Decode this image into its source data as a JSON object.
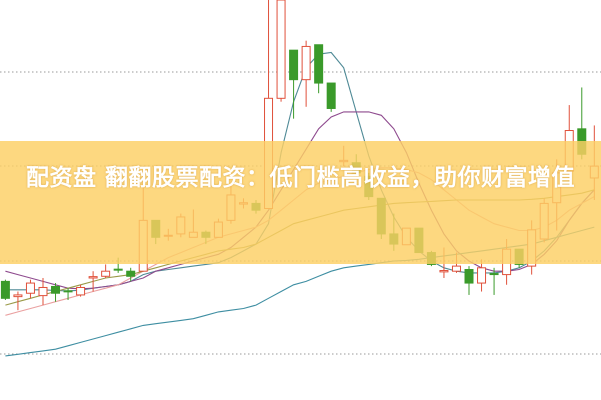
{
  "headline": "配资盘 翻翻股票配资：低门槛高收益，助你财富增值",
  "chart_data": {
    "type": "candlestick",
    "title": "",
    "xlabel": "",
    "ylabel": "",
    "grid": true,
    "legend": "none",
    "ylim": [
      0,
      118
    ],
    "colors": {
      "up": "#e0503a",
      "down": "#3a9a2a",
      "banner": "#fdd064",
      "grid": "#999999"
    },
    "candles": [
      {
        "o": 35.0,
        "h": 35.5,
        "l": 29.5,
        "c": 30.0
      },
      {
        "o": 30.5,
        "h": 32.0,
        "l": 26.5,
        "c": 31.0
      },
      {
        "o": 31.5,
        "h": 35.5,
        "l": 30.0,
        "c": 34.5
      },
      {
        "o": 30.8,
        "h": 36.0,
        "l": 28.0,
        "c": 33.2
      },
      {
        "o": 33.5,
        "h": 34.5,
        "l": 29.0,
        "c": 31.5
      },
      {
        "o": 32.2,
        "h": 33.0,
        "l": 29.5,
        "c": 32.0
      },
      {
        "o": 31.0,
        "h": 34.0,
        "l": 30.5,
        "c": 33.2
      },
      {
        "o": 36.0,
        "h": 38.0,
        "l": 32.0,
        "c": 36.4
      },
      {
        "o": 36.5,
        "h": 40.0,
        "l": 36.0,
        "c": 38.0
      },
      {
        "o": 38.6,
        "h": 42.0,
        "l": 37.5,
        "c": 38.4
      },
      {
        "o": 38.0,
        "h": 39.0,
        "l": 35.0,
        "c": 36.5
      },
      {
        "o": 38.0,
        "h": 69.0,
        "l": 38.0,
        "c": 53.0
      },
      {
        "o": 53.0,
        "h": 53.0,
        "l": 46.0,
        "c": 48.0
      },
      {
        "o": 48.4,
        "h": 50.5,
        "l": 47.0,
        "c": 48.6
      },
      {
        "o": 49.0,
        "h": 55.0,
        "l": 48.0,
        "c": 54.0
      },
      {
        "o": 48.0,
        "h": 56.2,
        "l": 48.0,
        "c": 49.5
      },
      {
        "o": 49.5,
        "h": 50.0,
        "l": 46.0,
        "c": 48.0
      },
      {
        "o": 48.0,
        "h": 53.5,
        "l": 48.0,
        "c": 52.5
      },
      {
        "o": 53.0,
        "h": 64.0,
        "l": 52.0,
        "c": 60.5
      },
      {
        "o": 57.8,
        "h": 59.5,
        "l": 56.5,
        "c": 58.2
      },
      {
        "o": 58.0,
        "h": 59.0,
        "l": 55.0,
        "c": 56.0
      },
      {
        "o": 56.5,
        "h": 118.0,
        "l": 56.5,
        "c": 89.0
      },
      {
        "o": 89.0,
        "h": 118.0,
        "l": 88.0,
        "c": 118.0
      },
      {
        "o": 103.2,
        "h": 103.2,
        "l": 83.0,
        "c": 94.5
      },
      {
        "o": 94.5,
        "h": 106.0,
        "l": 86.5,
        "c": 104.3
      },
      {
        "o": 104.8,
        "h": 104.8,
        "l": 90.5,
        "c": 93.5
      },
      {
        "o": 93.5,
        "h": 93.5,
        "l": 85.0,
        "c": 86.0
      },
      {
        "o": 70.3,
        "h": 75.0,
        "l": 69.0,
        "c": 70.7
      },
      {
        "o": 70.0,
        "h": 72.5,
        "l": 66.0,
        "c": 67.0
      },
      {
        "o": 66.0,
        "h": 67.0,
        "l": 59.0,
        "c": 60.0
      },
      {
        "o": 59.5,
        "h": 59.5,
        "l": 47.5,
        "c": 49.0
      },
      {
        "o": 49.0,
        "h": 55.0,
        "l": 44.0,
        "c": 46.0
      },
      {
        "o": 45.8,
        "h": 50.7,
        "l": 45.8,
        "c": 50.7
      },
      {
        "o": 50.7,
        "h": 50.7,
        "l": 43.5,
        "c": 43.5
      },
      {
        "o": 43.5,
        "h": 44.0,
        "l": 39.5,
        "c": 40.0
      },
      {
        "o": 37.8,
        "h": 45.0,
        "l": 36.0,
        "c": 38.2
      },
      {
        "o": 38.0,
        "h": 43.5,
        "l": 37.5,
        "c": 39.5
      },
      {
        "o": 38.5,
        "h": 39.5,
        "l": 31.0,
        "c": 34.5
      },
      {
        "o": 34.5,
        "h": 41.5,
        "l": 32.0,
        "c": 39.0
      },
      {
        "o": 37.3,
        "h": 39.0,
        "l": 31.0,
        "c": 37.1
      },
      {
        "o": 37.0,
        "h": 47.5,
        "l": 34.0,
        "c": 44.5
      },
      {
        "o": 44.5,
        "h": 44.5,
        "l": 39.0,
        "c": 40.0
      },
      {
        "o": 39.5,
        "h": 53.0,
        "l": 37.0,
        "c": 50.2
      },
      {
        "o": 47.5,
        "h": 59.5,
        "l": 46.5,
        "c": 58.0
      },
      {
        "o": 58.2,
        "h": 71.0,
        "l": 50.0,
        "c": 67.0
      },
      {
        "o": 67.5,
        "h": 87.0,
        "l": 67.5,
        "c": 79.5
      },
      {
        "o": 80.0,
        "h": 92.2,
        "l": 71.0,
        "c": 72.5
      },
      {
        "o": 65.5,
        "h": 81.0,
        "l": 59.0,
        "c": 69.0
      }
    ],
    "moving_averages": [
      {
        "color": "#4f8a96",
        "values": [
          32.5,
          32.5,
          32.5,
          32.5,
          32.3,
          32.2,
          32.4,
          33,
          33.5,
          34,
          35,
          37,
          38,
          38.5,
          39,
          39.5,
          40,
          40.5,
          42,
          44,
          46,
          52,
          73,
          88,
          98,
          102,
          102.5,
          98,
          85,
          72,
          62,
          54,
          48,
          44,
          41,
          39,
          38,
          37.5,
          37.5,
          37.5,
          38,
          39,
          41,
          44,
          48,
          53,
          58,
          62
        ]
      },
      {
        "color": "#8e4a8e",
        "values": [
          38,
          37,
          36,
          35,
          34,
          33,
          32.8,
          33,
          33.5,
          34,
          35,
          36,
          38,
          39,
          40,
          41,
          42,
          43,
          45,
          48,
          51,
          56,
          62,
          68,
          74,
          80,
          83.5,
          85,
          85,
          85,
          84,
          80,
          73,
          64,
          56,
          49,
          44,
          41,
          39,
          38,
          38,
          38.5,
          40,
          43,
          47,
          53,
          58,
          62
        ]
      },
      {
        "color": "#eaa0a0",
        "values": [
          25,
          26,
          27,
          28,
          29,
          30,
          31,
          32,
          33,
          34,
          36,
          38,
          40,
          42,
          43.5,
          45,
          46.5,
          48,
          49,
          50,
          51,
          53,
          56,
          59,
          62,
          64,
          65,
          66,
          67,
          68,
          68.5,
          68.5,
          68,
          67,
          65,
          62,
          59,
          56,
          54,
          52,
          51,
          50,
          50,
          51,
          53,
          56,
          58,
          60
        ]
      },
      {
        "color": "#9a9a48",
        "values": [
          28,
          29,
          30,
          31,
          32,
          33,
          34,
          35,
          36,
          36.5,
          37,
          38,
          39,
          40,
          41,
          42,
          43,
          44,
          44.5,
          45,
          46,
          48,
          50,
          52,
          53,
          54,
          55,
          56,
          56.5,
          57,
          57.5,
          58,
          58.2,
          58.4,
          58.6,
          58.8,
          59,
          59,
          59,
          59,
          59,
          59,
          59.2,
          59.5,
          60,
          60.5,
          61,
          62
        ]
      },
      {
        "color": "#3e8ea2",
        "values": [
          13,
          13.5,
          14,
          14.5,
          15,
          16,
          17,
          18,
          19,
          20,
          21,
          22,
          22.5,
          23,
          23.5,
          24,
          25,
          26,
          26.5,
          27,
          28,
          30,
          32,
          34,
          35,
          36.5,
          38,
          39,
          39.5,
          40,
          40.5,
          41,
          41.2,
          41.5,
          42,
          42.5,
          43,
          43.5,
          44,
          44.5,
          45,
          45.5,
          46,
          47,
          48,
          49,
          50,
          51
        ]
      }
    ]
  }
}
